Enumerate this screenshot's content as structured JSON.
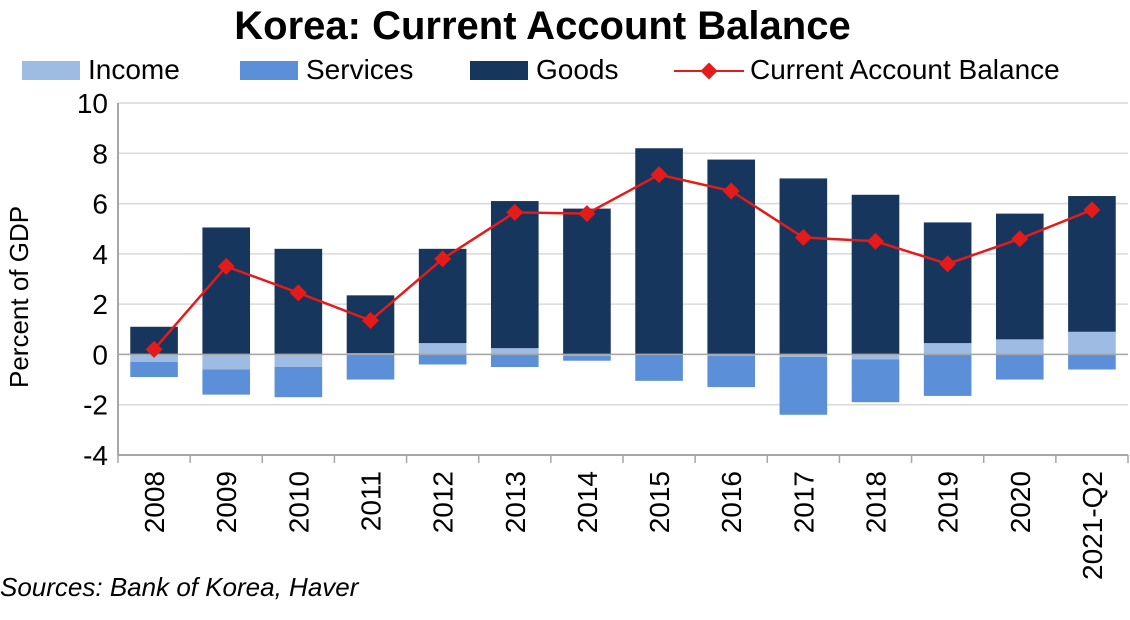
{
  "title": "Korea: Current Account Balance",
  "source": "Sources: Bank of Korea, Haver",
  "colors": {
    "income": "#9dbbe3",
    "services": "#5b8fd8",
    "goods": "#17365d",
    "balance": "#e31b1b",
    "grid": "#d9d9d9",
    "axis": "#a6a6a6"
  },
  "legend": [
    {
      "name": "Income",
      "key": "income",
      "kind": "bar"
    },
    {
      "name": "Services",
      "key": "services",
      "kind": "bar"
    },
    {
      "name": "Goods",
      "key": "goods",
      "kind": "bar"
    },
    {
      "name": "Current Account Balance",
      "key": "balance",
      "kind": "line"
    }
  ],
  "chart_data": {
    "type": "bar",
    "stacked": true,
    "title": "Korea: Current Account Balance",
    "ylabel": "Percent of GDP",
    "xlabel": "",
    "ylim": [
      -4,
      10
    ],
    "yticks": [
      10,
      8,
      6,
      4,
      2,
      0,
      -2,
      -4
    ],
    "grid": true,
    "legend_position": "top",
    "categories": [
      "2008",
      "2009",
      "2010",
      "2011",
      "2012",
      "2013",
      "2014",
      "2015",
      "2016",
      "2017",
      "2018",
      "2019",
      "2020",
      "2021-Q2"
    ],
    "series": [
      {
        "name": "Income",
        "type": "bar",
        "values": [
          -0.3,
          -0.6,
          -0.5,
          0.05,
          0.45,
          0.25,
          -0.05,
          0.0,
          -0.05,
          -0.1,
          -0.2,
          0.45,
          0.6,
          0.9
        ]
      },
      {
        "name": "Services",
        "type": "bar",
        "values": [
          -0.6,
          -1.0,
          -1.2,
          -1.0,
          -0.4,
          -0.5,
          -0.2,
          -1.05,
          -1.25,
          -2.3,
          -1.7,
          -1.65,
          -1.0,
          -0.6
        ]
      },
      {
        "name": "Goods",
        "type": "bar",
        "values": [
          1.1,
          5.05,
          4.2,
          2.3,
          3.75,
          5.85,
          5.8,
          8.2,
          7.75,
          7.0,
          6.35,
          4.8,
          5.0,
          5.4
        ]
      },
      {
        "name": "Current Account Balance",
        "type": "line",
        "values": [
          0.2,
          3.5,
          2.45,
          1.35,
          3.8,
          5.65,
          5.6,
          7.15,
          6.5,
          4.65,
          4.5,
          3.6,
          4.6,
          5.75
        ]
      }
    ]
  }
}
